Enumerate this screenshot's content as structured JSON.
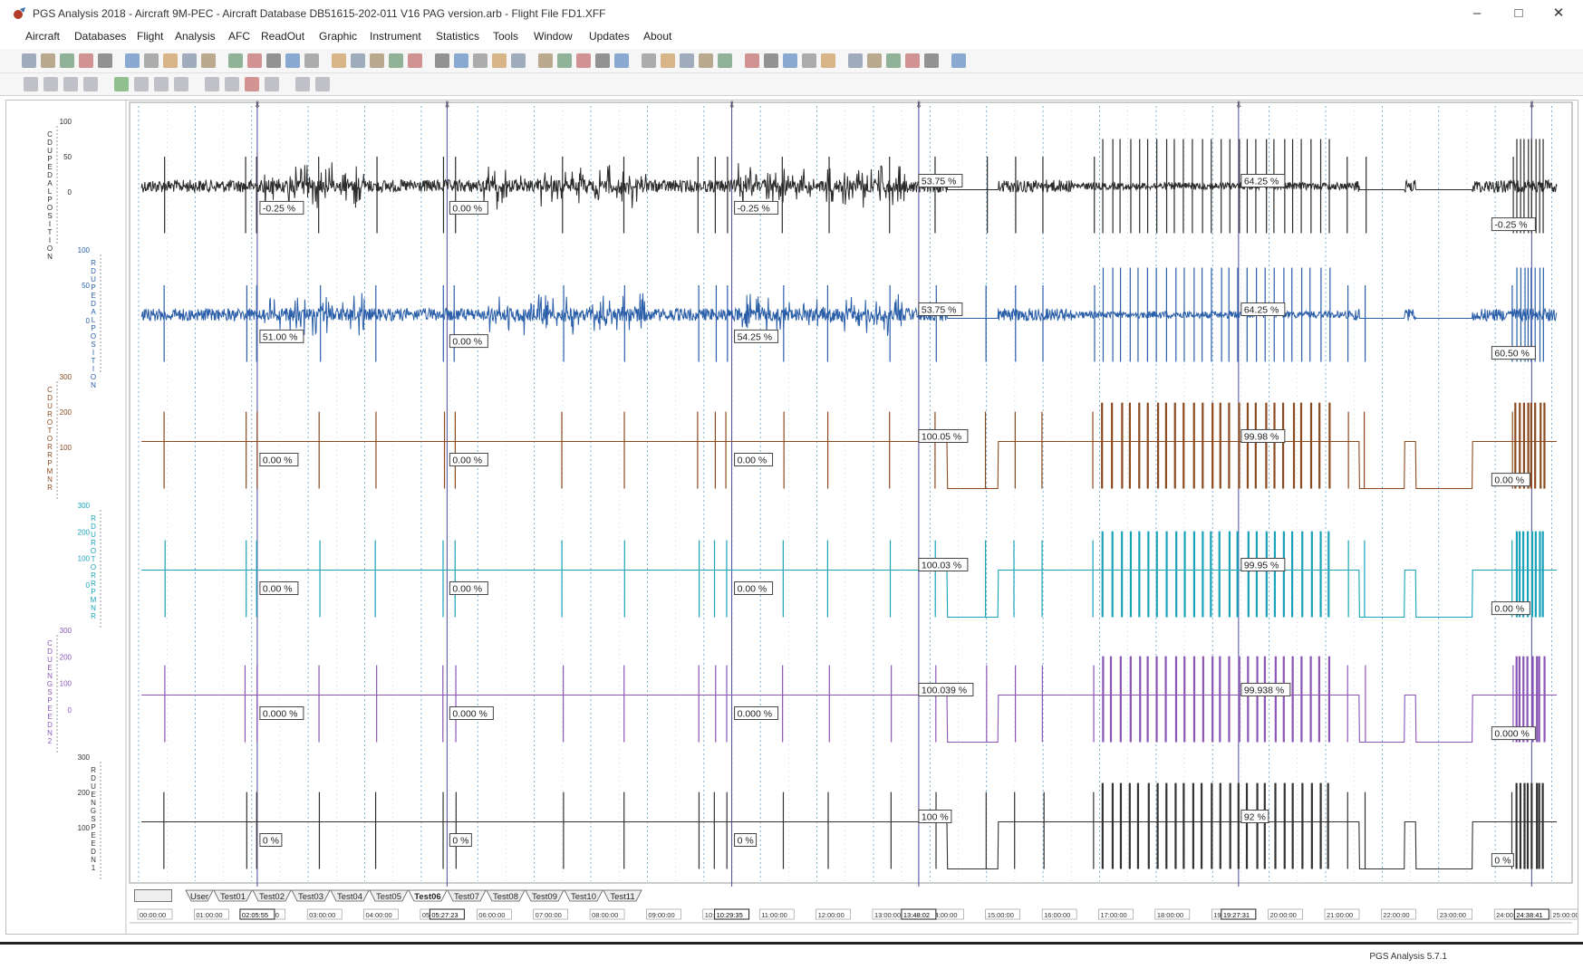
{
  "window": {
    "title": "PGS Analysis 2018 - Aircraft 9M-PEC - Aircraft Database DB51615-202-011 V16 PAG version.arb - Flight File FD1.XFF",
    "minimize": "–",
    "maximize": "□",
    "close": "✕"
  },
  "menu": [
    "Aircraft",
    "Databases",
    "Flight",
    "Analysis",
    "AFC",
    "ReadOut",
    "Graphic",
    "Instrument",
    "Statistics",
    "Tools",
    "Window",
    "Updates",
    "About"
  ],
  "tabs": {
    "items": [
      "User",
      "Test01",
      "Test02",
      "Test03",
      "Test04",
      "Test05",
      "Test06",
      "Test07",
      "Test08",
      "Test09",
      "Test10",
      "Test11"
    ],
    "active": "Test06"
  },
  "time_axis": {
    "ticks": [
      "00:00:00",
      "01:00:00",
      "02:00:00",
      "03:00:00",
      "04:00:00",
      "05:00:00",
      "06:00:00",
      "07:00:00",
      "08:00:00",
      "09:00:00",
      "10:00:00",
      "11:00:00",
      "12:00:00",
      "13:00:00",
      "14:00:00",
      "15:00:00",
      "16:00:00",
      "17:00:00",
      "18:00:00",
      "19:00:00",
      "20:00:00",
      "21:00:00",
      "22:00:00",
      "23:00:00",
      "24:00:00",
      "25:00:00"
    ],
    "cursor_times": [
      "02:05:55",
      "05:27:23",
      "10:29:35",
      "13:48:02",
      "19:27:31",
      "24:38:41"
    ]
  },
  "channels": [
    {
      "name": "C DU PEDAL POSITION",
      "color": "#2b2b2b",
      "axis_ticks": [
        "100",
        "50",
        "0"
      ],
      "values": [
        "-0.25 %",
        "0.00 %",
        "-0.25 %",
        "53.75 %",
        "64.25 %",
        "-0.25 %"
      ]
    },
    {
      "name": "R DU PEDAL POSITION",
      "color": "#2a5ea8",
      "axis_ticks": [
        "100",
        "50",
        "0"
      ],
      "values": [
        "51.00 %",
        "0.00 %",
        "54.25 %",
        "53.75 %",
        "64.25 %",
        "60.50 %"
      ]
    },
    {
      "name": "C DU ROTOR RPM NR",
      "color": "#8b4a1f",
      "axis_ticks": [
        "300",
        "200",
        "100"
      ],
      "values": [
        "0.00 %",
        "0.00 %",
        "0.00 %",
        "100.05 %",
        "99.98 %",
        "0.00 %"
      ]
    },
    {
      "name": "R DU ROTOR RPM NR",
      "color": "#18a3b8",
      "axis_ticks": [
        "300",
        "200",
        "100",
        "0"
      ],
      "values": [
        "0.00 %",
        "0.00 %",
        "0.00 %",
        "100.03 %",
        "99.95 %",
        "0.00 %"
      ]
    },
    {
      "name": "C DU ENG SPEED N2",
      "color": "#8a55b5",
      "axis_ticks": [
        "300",
        "200",
        "100",
        "0"
      ],
      "values": [
        "0.000 %",
        "0.000 %",
        "0.000 %",
        "100.039 %",
        "99.938 %",
        "0.000 %"
      ]
    },
    {
      "name": "R DU ENG SPEED N1",
      "color": "#333333",
      "axis_ticks": [
        "300",
        "200",
        "100"
      ],
      "values": [
        "0 %",
        "0 %",
        "0 %",
        "100 %",
        "92 %",
        "0 %"
      ]
    }
  ],
  "status": "PGS Analysis 5.7.1"
}
